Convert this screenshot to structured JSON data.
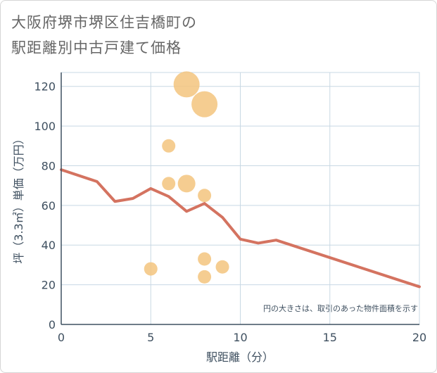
{
  "title_lines": [
    "大阪府堺市堺区住吉橋町の",
    "駅距離別中古戸建て価格"
  ],
  "chart_data": {
    "type": "scatter",
    "title": "大阪府堺市堺区住吉橋町の駅距離別中古戸建て価格",
    "xlabel": "駅距離（分）",
    "ylabel": "坪（3.3㎡）単価（万円）",
    "xlim": [
      0,
      20
    ],
    "ylim": [
      0,
      127
    ],
    "xticks": [
      0,
      5,
      10,
      15,
      20
    ],
    "yticks": [
      0,
      20,
      40,
      60,
      80,
      100,
      120
    ],
    "grid": true,
    "annotation": "円の大きさは、取引のあった物件面積を示す",
    "points": [
      {
        "x": 7,
        "y": 121,
        "size": 5
      },
      {
        "x": 8,
        "y": 111,
        "size": 5
      },
      {
        "x": 6,
        "y": 90,
        "size": 2
      },
      {
        "x": 6,
        "y": 71,
        "size": 2
      },
      {
        "x": 7,
        "y": 71,
        "size": 3
      },
      {
        "x": 8,
        "y": 65,
        "size": 2
      },
      {
        "x": 8,
        "y": 33,
        "size": 2
      },
      {
        "x": 9,
        "y": 29,
        "size": 2
      },
      {
        "x": 5,
        "y": 28,
        "size": 2
      },
      {
        "x": 8,
        "y": 24,
        "size": 2
      }
    ],
    "trend": {
      "x": [
        0,
        2,
        3,
        4,
        5,
        6,
        7,
        8,
        9,
        10,
        11,
        12,
        20
      ],
      "y": [
        78,
        72,
        62,
        63.5,
        68.5,
        64.5,
        57,
        61,
        54,
        43,
        41,
        42.5,
        19
      ]
    },
    "colors": {
      "point": "#f3c47e",
      "trend": "#d47360",
      "grid": "#c8d8e4",
      "axis": "#3f5060"
    }
  }
}
